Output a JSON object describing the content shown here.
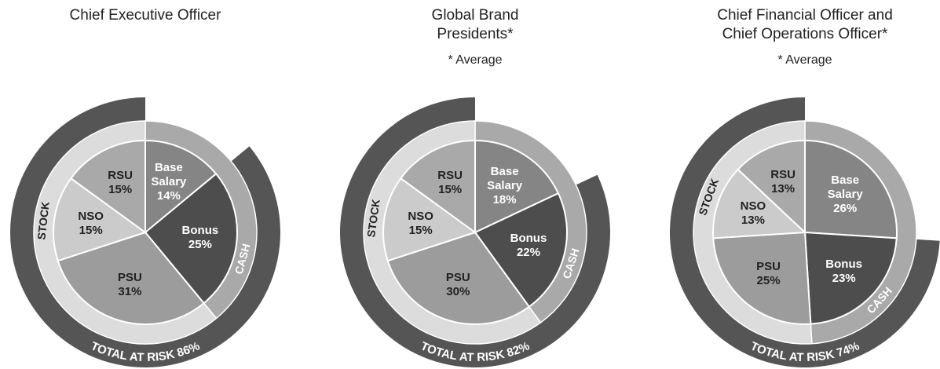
{
  "chart_data": [
    {
      "type": "pie",
      "title": "Chief Executive Officer",
      "categories": [
        "Base Salary",
        "Bonus",
        "PSU",
        "NSO",
        "RSU"
      ],
      "values": [
        14,
        25,
        31,
        15,
        15
      ],
      "value_labels": [
        "14%",
        "25%",
        "31%",
        "15%",
        "15%"
      ],
      "colors": [
        "#858585",
        "#4d4d4d",
        "#9c9c9c",
        "#cbcbcb",
        "#a9a9a9"
      ],
      "groups": [
        {
          "label": "CASH",
          "categories": [
            "Base Salary",
            "Bonus"
          ]
        },
        {
          "label": "STOCK",
          "categories": [
            "PSU",
            "NSO",
            "RSU"
          ]
        }
      ],
      "at_risk_label": "TOTAL AT RISK 86%"
    },
    {
      "type": "pie",
      "title": "Global Brand Presidents*",
      "subtitle": "* Average",
      "categories": [
        "Base Salary",
        "Bonus",
        "PSU",
        "NSO",
        "RSU"
      ],
      "values": [
        18,
        22,
        30,
        15,
        15
      ],
      "value_labels": [
        "18%",
        "22%",
        "30%",
        "15%",
        "15%"
      ],
      "colors": [
        "#858585",
        "#4d4d4d",
        "#9c9c9c",
        "#cbcbcb",
        "#a9a9a9"
      ],
      "groups": [
        {
          "label": "CASH",
          "categories": [
            "Base Salary",
            "Bonus"
          ]
        },
        {
          "label": "STOCK",
          "categories": [
            "PSU",
            "NSO",
            "RSU"
          ]
        }
      ],
      "at_risk_label": "TOTAL AT RISK 82%"
    },
    {
      "type": "pie",
      "title": "Chief Financial Officer and Chief Operations Officer*",
      "subtitle": "* Average",
      "categories": [
        "Base Salary",
        "Bonus",
        "PSU",
        "NSO",
        "RSU"
      ],
      "values": [
        26,
        23,
        25,
        13,
        13
      ],
      "value_labels": [
        "26%",
        "23%",
        "25%",
        "13%",
        "13%"
      ],
      "colors": [
        "#858585",
        "#4d4d4d",
        "#9c9c9c",
        "#cbcbcb",
        "#a9a9a9"
      ],
      "groups": [
        {
          "label": "CASH",
          "categories": [
            "Base Salary",
            "Bonus"
          ]
        },
        {
          "label": "STOCK",
          "categories": [
            "PSU",
            "NSO",
            "RSU"
          ]
        }
      ],
      "at_risk_label": "TOTAL AT RISK 74%"
    }
  ]
}
